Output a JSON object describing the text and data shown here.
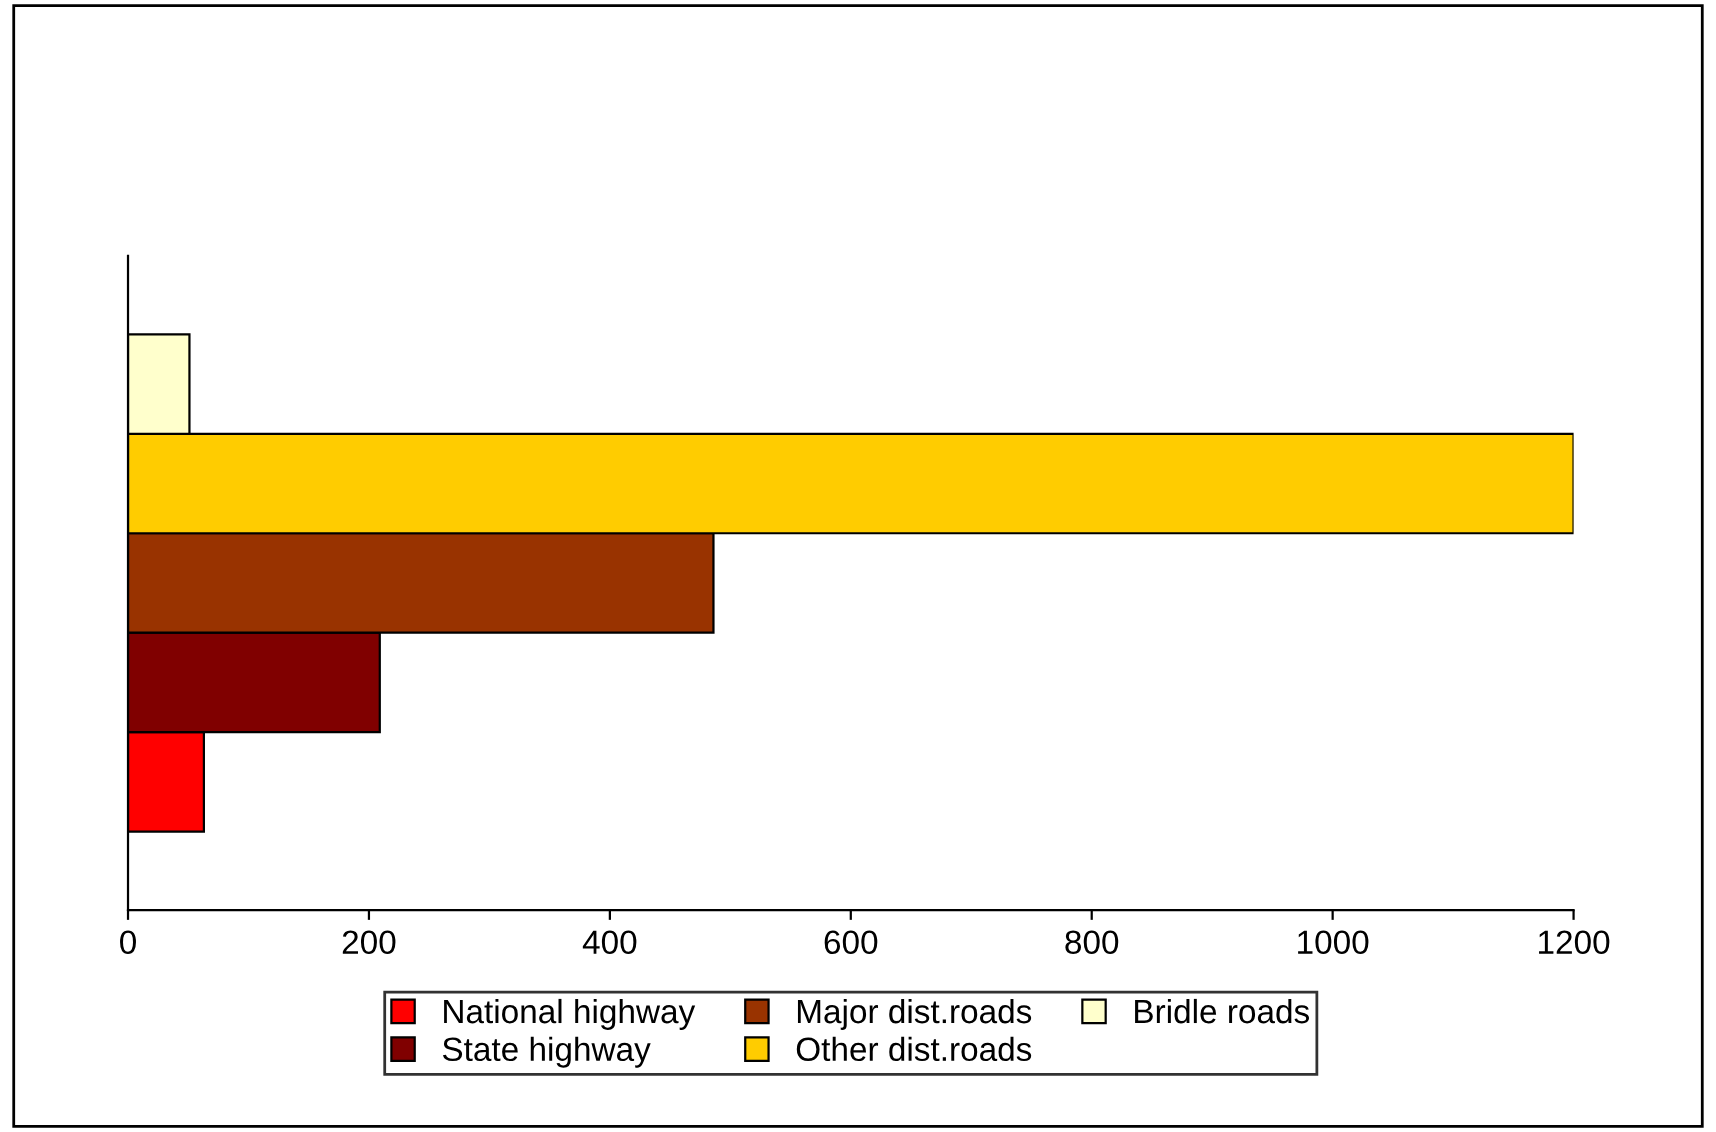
{
  "chart_data": {
    "type": "bar",
    "orientation": "horizontal",
    "categories": [
      null
    ],
    "series": [
      {
        "name": "National highway",
        "color": "#ff0000",
        "values": [
          63
        ]
      },
      {
        "name": "State highway",
        "color": "#800000",
        "values": [
          209
        ]
      },
      {
        "name": "Major dist.roads",
        "color": "#993300",
        "values": [
          486
        ]
      },
      {
        "name": "Other dist.roads",
        "color": "#ffcc00",
        "values": [
          1200
        ]
      },
      {
        "name": "Bridle roads",
        "color": "#ffffcc",
        "values": [
          51
        ]
      }
    ],
    "xlim": [
      0,
      1200
    ],
    "xticks": [
      0,
      200,
      400,
      600,
      800,
      1000,
      1200
    ],
    "grid": false,
    "legend": "bottom"
  }
}
